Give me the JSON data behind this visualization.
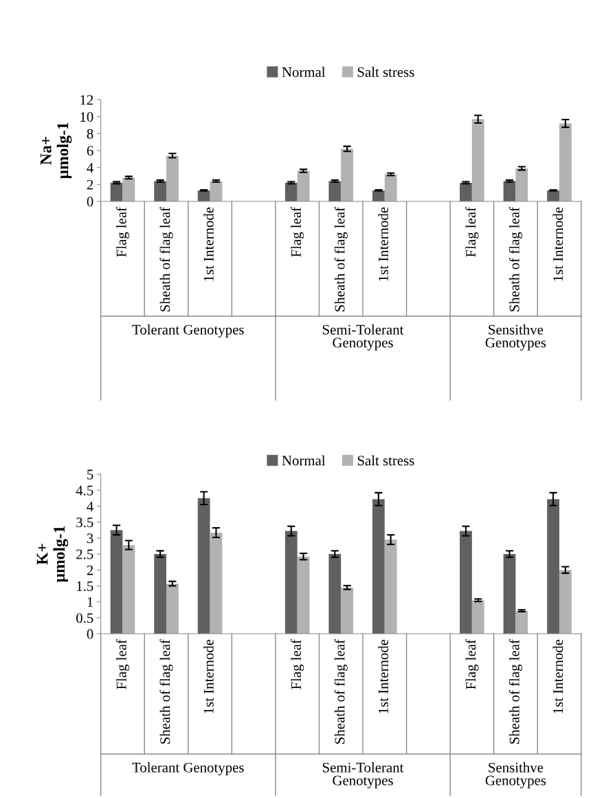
{
  "chart_data": [
    {
      "type": "bar",
      "ylabel": "Na+\nµmolg-1",
      "categories": [
        "Flag leaf",
        "Sheath of flag leaf",
        "1st Internode",
        null,
        "Flag leaf",
        "Sheath of flag leaf",
        "1st Internode",
        null,
        "Flag leaf",
        "Sheath of flag leaf",
        "1st Internode"
      ],
      "series": [
        {
          "name": "Normal",
          "color": "#606060",
          "values": [
            2.2,
            2.4,
            1.3,
            null,
            2.2,
            2.4,
            1.3,
            null,
            2.2,
            2.4,
            1.3
          ],
          "errors": [
            0.12,
            0.12,
            0.06,
            null,
            0.12,
            0.12,
            0.06,
            null,
            0.12,
            0.12,
            0.06
          ]
        },
        {
          "name": "Salt stress",
          "color": "#b2b2b2",
          "values": [
            2.8,
            5.4,
            2.4,
            null,
            3.6,
            6.2,
            3.2,
            null,
            9.7,
            3.9,
            9.2
          ],
          "errors": [
            0.15,
            0.25,
            0.12,
            null,
            0.18,
            0.3,
            0.15,
            null,
            0.45,
            0.2,
            0.45
          ]
        }
      ],
      "ylim": [
        0,
        12
      ],
      "yticks": [
        0,
        2,
        4,
        6,
        8,
        10,
        12
      ],
      "grid": false,
      "legend": "top",
      "annotations": [
        "Tolerant Genotypes",
        "Semi-Tolerant\nGenotypes",
        "Sensithve\nGenotypes"
      ]
    },
    {
      "type": "bar",
      "ylabel": "K+\nµmolg-1",
      "categories": [
        "Flag leaf",
        "Sheath of flag leaf",
        "1st Internode",
        null,
        "Flag leaf",
        "Sheath of flag leaf",
        "1st Internode",
        null,
        "Flag leaf",
        "Sheath of flag leaf",
        "1st Internode"
      ],
      "series": [
        {
          "name": "Normal",
          "color": "#606060",
          "values": [
            3.25,
            2.5,
            4.25,
            null,
            3.22,
            2.5,
            4.22,
            null,
            3.22,
            2.5,
            4.22
          ],
          "errors": [
            0.15,
            0.1,
            0.2,
            null,
            0.15,
            0.1,
            0.2,
            null,
            0.15,
            0.1,
            0.2
          ]
        },
        {
          "name": "Salt stress",
          "color": "#b2b2b2",
          "values": [
            2.78,
            1.57,
            3.17,
            null,
            2.42,
            1.45,
            2.95,
            null,
            1.05,
            0.72,
            2.0
          ],
          "errors": [
            0.14,
            0.07,
            0.15,
            null,
            0.1,
            0.06,
            0.15,
            null,
            0.04,
            0.03,
            0.1
          ]
        }
      ],
      "ylim": [
        0,
        5
      ],
      "yticks": [
        0,
        0.5,
        1,
        1.5,
        2,
        2.5,
        3,
        3.5,
        4,
        4.5,
        5
      ],
      "grid": false,
      "legend": "top",
      "annotations": [
        "Tolerant Genotypes",
        "Semi-Tolerant\nGenotypes",
        "Sensithve\nGenotypes"
      ]
    }
  ]
}
